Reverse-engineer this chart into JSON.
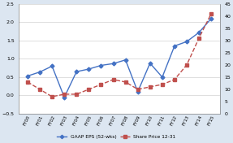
{
  "categories": [
    "FY00",
    "FY01",
    "FY02",
    "FY03",
    "FY04",
    "FY05",
    "FY06",
    "FY07",
    "FY08",
    "FY09",
    "FY10",
    "FY11",
    "FY12",
    "FY13",
    "FY14",
    "FY15"
  ],
  "gaap_eps": [
    0.53,
    0.64,
    0.8,
    -0.05,
    0.65,
    0.72,
    0.82,
    0.87,
    0.97,
    0.1,
    0.88,
    0.5,
    1.35,
    1.47,
    1.72,
    2.1
  ],
  "share_price": [
    13,
    10,
    7,
    8,
    8,
    10,
    12,
    14,
    13,
    10,
    11,
    12,
    14,
    20,
    31,
    41
  ],
  "eps_color": "#4472c4",
  "price_color": "#c0504d",
  "eps_label": "GAAP EPS (52-wks)",
  "price_label": "Share Price 12-31",
  "ylim_left": [
    -0.5,
    2.5
  ],
  "ylim_right": [
    0,
    45
  ],
  "yticks_left": [
    -0.5,
    0.0,
    0.5,
    1.0,
    1.5,
    2.0,
    2.5
  ],
  "yticks_right": [
    0,
    5,
    10,
    15,
    20,
    25,
    30,
    35,
    40,
    45
  ],
  "outer_bg": "#dce6f1",
  "plot_bg": "#ffffff",
  "grid_color": "#d9d9d9"
}
